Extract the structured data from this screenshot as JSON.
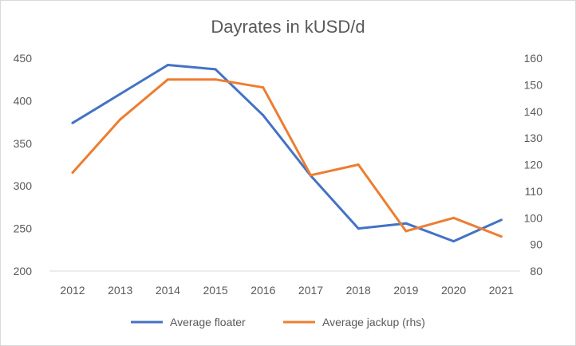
{
  "chart_data": {
    "type": "line",
    "title": "Dayrates in kUSD/d",
    "categories": [
      "2012",
      "2013",
      "2014",
      "2015",
      "2016",
      "2017",
      "2018",
      "2019",
      "2020",
      "2021"
    ],
    "series": [
      {
        "name": "Average floater",
        "axis": "left",
        "color": "#4472C4",
        "values": [
          374,
          408,
          442,
          437,
          383,
          312,
          250,
          256,
          235,
          260
        ]
      },
      {
        "name": "Average jackup (rhs)",
        "axis": "right",
        "color": "#ED7D31",
        "values": [
          117,
          137,
          152,
          152,
          149,
          116,
          120,
          95,
          100,
          93
        ]
      }
    ],
    "y_left": {
      "min": 200,
      "max": 450,
      "ticks": [
        "200",
        "250",
        "300",
        "350",
        "400",
        "450"
      ]
    },
    "y_right": {
      "min": 80,
      "max": 160,
      "ticks": [
        "80",
        "90",
        "100",
        "110",
        "120",
        "130",
        "140",
        "150",
        "160"
      ]
    },
    "grid": false,
    "legend_position": "bottom"
  }
}
